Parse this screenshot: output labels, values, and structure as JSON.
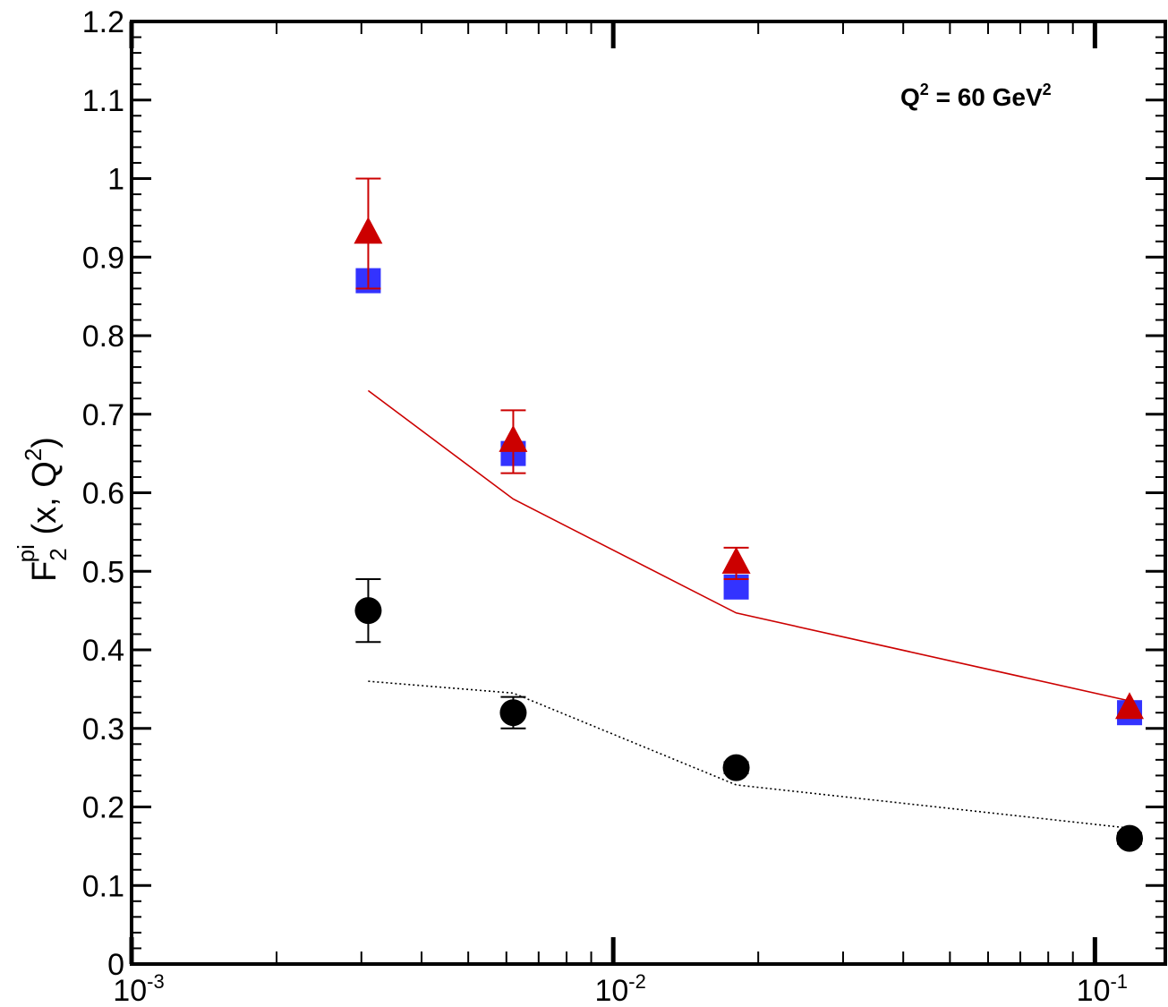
{
  "chart_data": {
    "type": "scatter",
    "annotation": {
      "base": "Q",
      "sup": "2",
      "mid": " = 60 GeV",
      "sup2": "2"
    },
    "ylabel": {
      "base": "F",
      "sub": "2",
      "sup": "pi",
      "tail_a": " (x, Q",
      "tail_sup": "2",
      "tail_b": ")"
    },
    "xlabel": "",
    "x_scale": "log",
    "xlim": [
      0.001,
      0.14
    ],
    "ylim": [
      0,
      1.2
    ],
    "x_ticks": [
      {
        "value": 0.001,
        "base": "10",
        "exp": "-3"
      },
      {
        "value": 0.01,
        "base": "10",
        "exp": "-2"
      },
      {
        "value": 0.1,
        "base": "10",
        "exp": "-1"
      }
    ],
    "y_ticks": [
      "0",
      "0.1",
      "0.2",
      "0.3",
      "0.4",
      "0.5",
      "0.6",
      "0.7",
      "0.8",
      "0.9",
      "1",
      "1.1",
      "1.2"
    ],
    "grid": false,
    "series": [
      {
        "marker": "circle",
        "color": "#000000",
        "points": [
          {
            "x": 0.0031,
            "y": 0.45,
            "err_low": 0.41,
            "err_high": 0.49
          },
          {
            "x": 0.0062,
            "y": 0.32,
            "err_low": 0.3,
            "err_high": 0.34
          },
          {
            "x": 0.018,
            "y": 0.25,
            "err_low": 0.243,
            "err_high": 0.257
          },
          {
            "x": 0.118,
            "y": 0.16,
            "err_low": 0.153,
            "err_high": 0.167
          }
        ]
      },
      {
        "marker": "square",
        "color": "#3333ff",
        "points": [
          {
            "x": 0.0031,
            "y": 0.87
          },
          {
            "x": 0.0062,
            "y": 0.65
          },
          {
            "x": 0.018,
            "y": 0.48
          },
          {
            "x": 0.118,
            "y": 0.32
          }
        ]
      },
      {
        "marker": "triangle",
        "color": "#cc0000",
        "points": [
          {
            "x": 0.0031,
            "y": 0.93,
            "err_low": 0.86,
            "err_high": 1.0
          },
          {
            "x": 0.0062,
            "y": 0.665,
            "err_low": 0.625,
            "err_high": 0.705
          },
          {
            "x": 0.018,
            "y": 0.51,
            "err_low": 0.49,
            "err_high": 0.53
          },
          {
            "x": 0.118,
            "y": 0.325
          }
        ]
      }
    ],
    "curves": [
      {
        "style": "solid",
        "color": "#cc0000",
        "points": [
          [
            0.0031,
            0.73
          ],
          [
            0.0062,
            0.592
          ],
          [
            0.018,
            0.447
          ],
          [
            0.118,
            0.335
          ]
        ]
      },
      {
        "style": "dotted",
        "color": "#000000",
        "points": [
          [
            0.0031,
            0.36
          ],
          [
            0.0062,
            0.345
          ],
          [
            0.018,
            0.228
          ],
          [
            0.118,
            0.173
          ]
        ]
      }
    ]
  }
}
